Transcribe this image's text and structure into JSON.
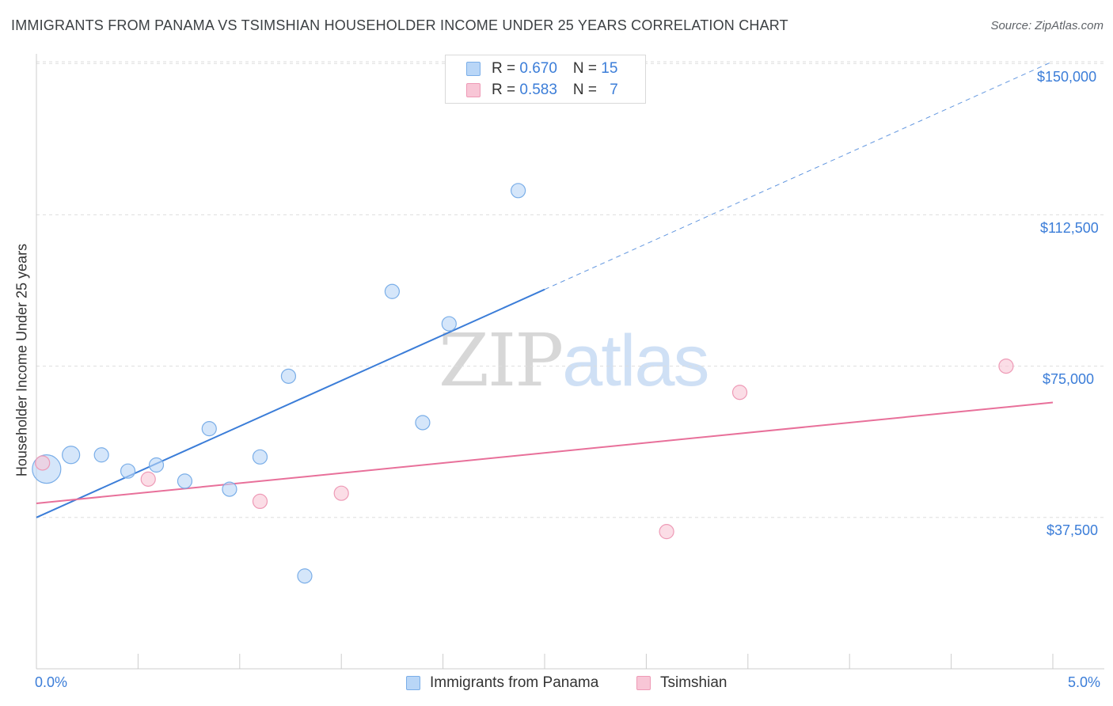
{
  "header": {
    "title": "IMMIGRANTS FROM PANAMA VS TSIMSHIAN HOUSEHOLDER INCOME UNDER 25 YEARS CORRELATION CHART",
    "source": "Source: ZipAtlas.com"
  },
  "legend": {
    "r_label": "R = ",
    "n_label": "N = ",
    "items": [
      {
        "r": "0.670",
        "n": "15"
      },
      {
        "r": "0.583",
        "n": "7"
      }
    ]
  },
  "watermark": {
    "zip": "ZIP",
    "atlas": "atlas"
  },
  "colors": {
    "blue": "#3b7dd8",
    "blue_fill": "#b9d6f7",
    "blue_stroke": "#7aaee8",
    "pink": "#e8709a",
    "pink_fill": "#f8c6d6",
    "pink_stroke": "#ee9ab6",
    "grid": "#dddddd",
    "axis": "#cccccc"
  },
  "chart_data": {
    "type": "scatter",
    "title": "IMMIGRANTS FROM PANAMA VS TSIMSHIAN HOUSEHOLDER INCOME UNDER 25 YEARS CORRELATION CHART",
    "xlabel": "",
    "ylabel": "Householder Income Under 25 years",
    "xlim": [
      0,
      5
    ],
    "ylim": [
      0,
      152000
    ],
    "x_tick_labels": [
      "0.0%",
      "5.0%"
    ],
    "y_ticks": [
      37500,
      75000,
      112500,
      150000
    ],
    "y_tick_labels": [
      "$37,500",
      "$75,000",
      "$112,500",
      "$150,000"
    ],
    "grid": true,
    "legend_position": "top-center",
    "series": [
      {
        "name": "Immigrants from Panama",
        "color": "#3b7dd8",
        "points": [
          {
            "x": 0.05,
            "y": 49500,
            "size": 18
          },
          {
            "x": 0.17,
            "y": 53000,
            "size": 11
          },
          {
            "x": 0.32,
            "y": 53000,
            "size": 9
          },
          {
            "x": 0.45,
            "y": 49000,
            "size": 9
          },
          {
            "x": 0.59,
            "y": 50500,
            "size": 9
          },
          {
            "x": 0.73,
            "y": 46500,
            "size": 9
          },
          {
            "x": 0.85,
            "y": 59500,
            "size": 9
          },
          {
            "x": 0.95,
            "y": 44500,
            "size": 9
          },
          {
            "x": 1.1,
            "y": 52500,
            "size": 9
          },
          {
            "x": 1.24,
            "y": 72500,
            "size": 9
          },
          {
            "x": 1.32,
            "y": 23000,
            "size": 9
          },
          {
            "x": 1.75,
            "y": 93500,
            "size": 9
          },
          {
            "x": 1.9,
            "y": 61000,
            "size": 9
          },
          {
            "x": 2.03,
            "y": 85500,
            "size": 9
          },
          {
            "x": 2.37,
            "y": 118500,
            "size": 9
          }
        ],
        "trend": {
          "x0": 0,
          "y0": 37500,
          "x1": 2.5,
          "y1": 94000,
          "extend_to": 5.0,
          "extend_y": 150500
        }
      },
      {
        "name": "Tsimshian",
        "color": "#e8709a",
        "points": [
          {
            "x": 0.03,
            "y": 51000,
            "size": 9
          },
          {
            "x": 0.55,
            "y": 47000,
            "size": 9
          },
          {
            "x": 1.1,
            "y": 41500,
            "size": 9
          },
          {
            "x": 1.5,
            "y": 43500,
            "size": 9
          },
          {
            "x": 3.1,
            "y": 34000,
            "size": 9
          },
          {
            "x": 3.46,
            "y": 68500,
            "size": 9
          },
          {
            "x": 4.77,
            "y": 75000,
            "size": 9
          }
        ],
        "trend": {
          "x0": 0,
          "y0": 41000,
          "x1": 5.0,
          "y1": 66000
        }
      }
    ]
  }
}
